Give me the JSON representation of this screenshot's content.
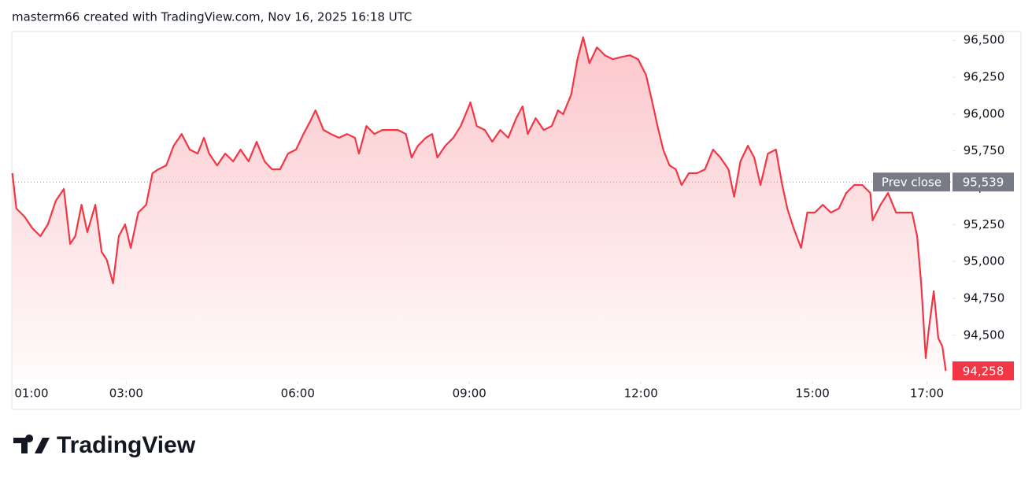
{
  "header": {
    "text": "masterm66 created with TradingView.com, Nov 16, 2025 16:18 UTC"
  },
  "logo": {
    "text": "TradingView"
  },
  "chart_data": {
    "type": "area",
    "color": "#f23645",
    "x": [
      1.01,
      1.08,
      1.22,
      1.36,
      1.5,
      1.63,
      1.77,
      1.91,
      2.02,
      2.11,
      2.22,
      2.32,
      2.46,
      2.57,
      2.66,
      2.77,
      2.87,
      2.98,
      3.08,
      3.21,
      3.35,
      3.46,
      3.56,
      3.7,
      3.83,
      3.97,
      4.11,
      4.25,
      4.36,
      4.45,
      4.59,
      4.73,
      4.87,
      5.0,
      5.14,
      5.28,
      5.42,
      5.55,
      5.69,
      5.83,
      5.97,
      6.1,
      6.21,
      6.31,
      6.45,
      6.58,
      6.72,
      6.86,
      7.0,
      7.07,
      7.2,
      7.34,
      7.48,
      7.62,
      7.75,
      7.89,
      7.99,
      8.1,
      8.24,
      8.35,
      8.44,
      8.58,
      8.72,
      8.85,
      9.02,
      9.13,
      9.27,
      9.4,
      9.54,
      9.68,
      9.82,
      9.93,
      10.02,
      10.16,
      10.3,
      10.44,
      10.55,
      10.64,
      10.78,
      10.89,
      10.99,
      11.1,
      11.23,
      11.37,
      11.51,
      11.67,
      11.81,
      11.95,
      12.09,
      12.2,
      12.29,
      12.39,
      12.5,
      12.61,
      12.71,
      12.84,
      12.98,
      13.12,
      13.26,
      13.39,
      13.53,
      13.63,
      13.74,
      13.87,
      13.98,
      14.09,
      14.22,
      14.36,
      14.47,
      14.56,
      14.67,
      14.8,
      14.91,
      15.04,
      15.18,
      15.32,
      15.46,
      15.59,
      15.73,
      15.87,
      16.01,
      16.05,
      16.19,
      16.32,
      16.46,
      16.6,
      16.74,
      16.83,
      16.9,
      16.98,
      17.03,
      17.12,
      17.2,
      17.27,
      17.33
    ],
    "values": [
      95599,
      95359,
      95305,
      95225,
      95172,
      95252,
      95412,
      95492,
      95119,
      95172,
      95385,
      95199,
      95385,
      95065,
      95012,
      94852,
      95172,
      95252,
      95092,
      95332,
      95385,
      95599,
      95625,
      95652,
      95785,
      95865,
      95759,
      95732,
      95839,
      95732,
      95652,
      95732,
      95679,
      95759,
      95679,
      95812,
      95679,
      95625,
      95625,
      95732,
      95759,
      95865,
      95945,
      96025,
      95892,
      95865,
      95839,
      95865,
      95839,
      95732,
      95919,
      95865,
      95892,
      95892,
      95892,
      95865,
      95705,
      95785,
      95839,
      95865,
      95705,
      95785,
      95839,
      95919,
      96079,
      95919,
      95892,
      95812,
      95892,
      95839,
      95972,
      96052,
      95865,
      95972,
      95892,
      95919,
      96025,
      95999,
      96132,
      96372,
      96521,
      96345,
      96452,
      96399,
      96372,
      96388,
      96399,
      96372,
      96265,
      96079,
      95919,
      95759,
      95652,
      95625,
      95519,
      95599,
      95599,
      95625,
      95759,
      95705,
      95625,
      95439,
      95679,
      95785,
      95705,
      95519,
      95732,
      95759,
      95519,
      95359,
      95225,
      95092,
      95332,
      95332,
      95385,
      95332,
      95359,
      95465,
      95519,
      95519,
      95465,
      95279,
      95385,
      95465,
      95332,
      95332,
      95332,
      95172,
      94852,
      94345,
      94532,
      94799,
      94479,
      94425,
      94258
    ],
    "xlim": [
      1,
      17.42
    ],
    "ylim": [
      94200,
      96560
    ],
    "xticks": [
      {
        "value": 1,
        "label": "01:00"
      },
      {
        "value": 3,
        "label": "03:00"
      },
      {
        "value": 6,
        "label": "06:00"
      },
      {
        "value": 9,
        "label": "09:00"
      },
      {
        "value": 12,
        "label": "12:00"
      },
      {
        "value": 15,
        "label": "15:00"
      },
      {
        "value": 17,
        "label": "17:00"
      }
    ],
    "yticks": [
      {
        "value": 94500,
        "label": "94,500"
      },
      {
        "value": 94750,
        "label": "94,750"
      },
      {
        "value": 95000,
        "label": "95,000"
      },
      {
        "value": 95250,
        "label": "95,250"
      },
      {
        "value": 95500,
        "label": "95,500"
      },
      {
        "value": 95750,
        "label": "95,750"
      },
      {
        "value": 96000,
        "label": "96,000"
      },
      {
        "value": 96250,
        "label": "96,250"
      },
      {
        "value": 96500,
        "label": "96,500"
      }
    ],
    "prev_close": {
      "name": "Prev close",
      "value": 95539,
      "label": "95,539"
    },
    "last_price": {
      "value": 94258,
      "label": "94,258"
    }
  }
}
